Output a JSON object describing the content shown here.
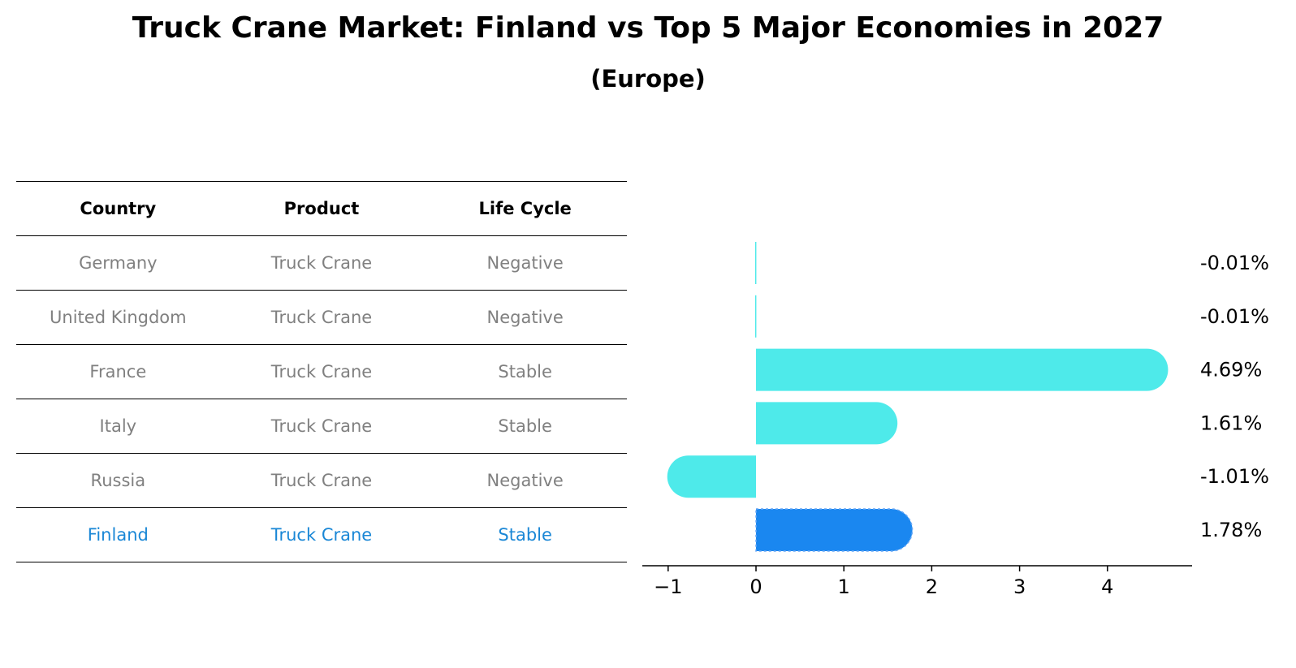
{
  "title": "Truck Crane Market: Finland vs Top 5 Major Economies in 2027",
  "subtitle": "(Europe)",
  "table": {
    "headers": [
      "Country",
      "Product",
      "Life Cycle"
    ],
    "rows": [
      [
        "Germany",
        "Truck Crane",
        "Negative"
      ],
      [
        "United Kingdom",
        "Truck Crane",
        "Negative"
      ],
      [
        "France",
        "Truck Crane",
        "Stable"
      ],
      [
        "Italy",
        "Truck Crane",
        "Stable"
      ],
      [
        "Russia",
        "Truck Crane",
        "Negative"
      ],
      [
        "Finland",
        "Truck Crane",
        "Stable"
      ]
    ],
    "highlight_row": 5
  },
  "colors": {
    "bar": "#4eeaea",
    "highlight_bar": "#1a87f0",
    "highlight_text": "#1a87d6",
    "muted_text": "#808080"
  },
  "chart_data": {
    "type": "bar",
    "orientation": "horizontal",
    "categories": [
      "Germany",
      "United Kingdom",
      "France",
      "Italy",
      "Russia",
      "Finland"
    ],
    "values": [
      -0.01,
      -0.01,
      4.69,
      1.61,
      -1.01,
      1.78
    ],
    "value_labels": [
      "-0.01%",
      "-0.01%",
      "4.69%",
      "1.61%",
      "-1.01%",
      "1.78%"
    ],
    "highlight_index": 5,
    "xlim": [
      -1.3,
      4.95
    ],
    "xticks": [
      -1,
      0,
      1,
      2,
      3,
      4
    ],
    "xtick_labels": [
      "−1",
      "0",
      "1",
      "2",
      "3",
      "4"
    ],
    "grid": false
  }
}
